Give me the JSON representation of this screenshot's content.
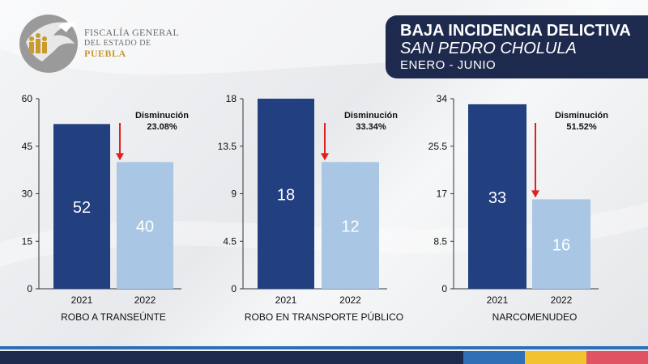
{
  "header": {
    "logo_line1": "FISCALÍA GENERAL",
    "logo_line2": "DEL ESTADO DE",
    "logo_line3": "PUEBLA",
    "title_line1": "BAJA INCIDENCIA DELICTIVA",
    "title_line2": "SAN PEDRO CHOLULA",
    "title_line3": "ENERO - JUNIO"
  },
  "colors": {
    "bar_2021": "#223f80",
    "bar_2022": "#a9c6e4",
    "arrow": "#e02020",
    "title_bg": "#1e2a4d"
  },
  "chart_data": [
    {
      "type": "bar",
      "category_label": "ROBO A TRANSEÚNTE",
      "categories": [
        "2021",
        "2022"
      ],
      "values": [
        52,
        40
      ],
      "ylim": [
        0,
        60
      ],
      "yticks": [
        "0",
        "15",
        "30",
        "45",
        "60"
      ],
      "annotation_title": "Disminución",
      "annotation_value": "23.08%"
    },
    {
      "type": "bar",
      "category_label": "ROBO EN TRANSPORTE PÚBLICO",
      "categories": [
        "2021",
        "2022"
      ],
      "values": [
        18,
        12
      ],
      "ylim": [
        0,
        18
      ],
      "yticks": [
        "0",
        "4.5",
        "9",
        "13.5",
        "18"
      ],
      "annotation_title": "Disminución",
      "annotation_value": "33.34%"
    },
    {
      "type": "bar",
      "category_label": "NARCOMENUDEO",
      "categories": [
        "2021",
        "2022"
      ],
      "values": [
        33,
        16
      ],
      "ylim": [
        0,
        34
      ],
      "yticks": [
        "0",
        "8.5",
        "17",
        "25.5",
        "34"
      ],
      "annotation_title": "Disminución",
      "annotation_value": "51.52%"
    }
  ]
}
